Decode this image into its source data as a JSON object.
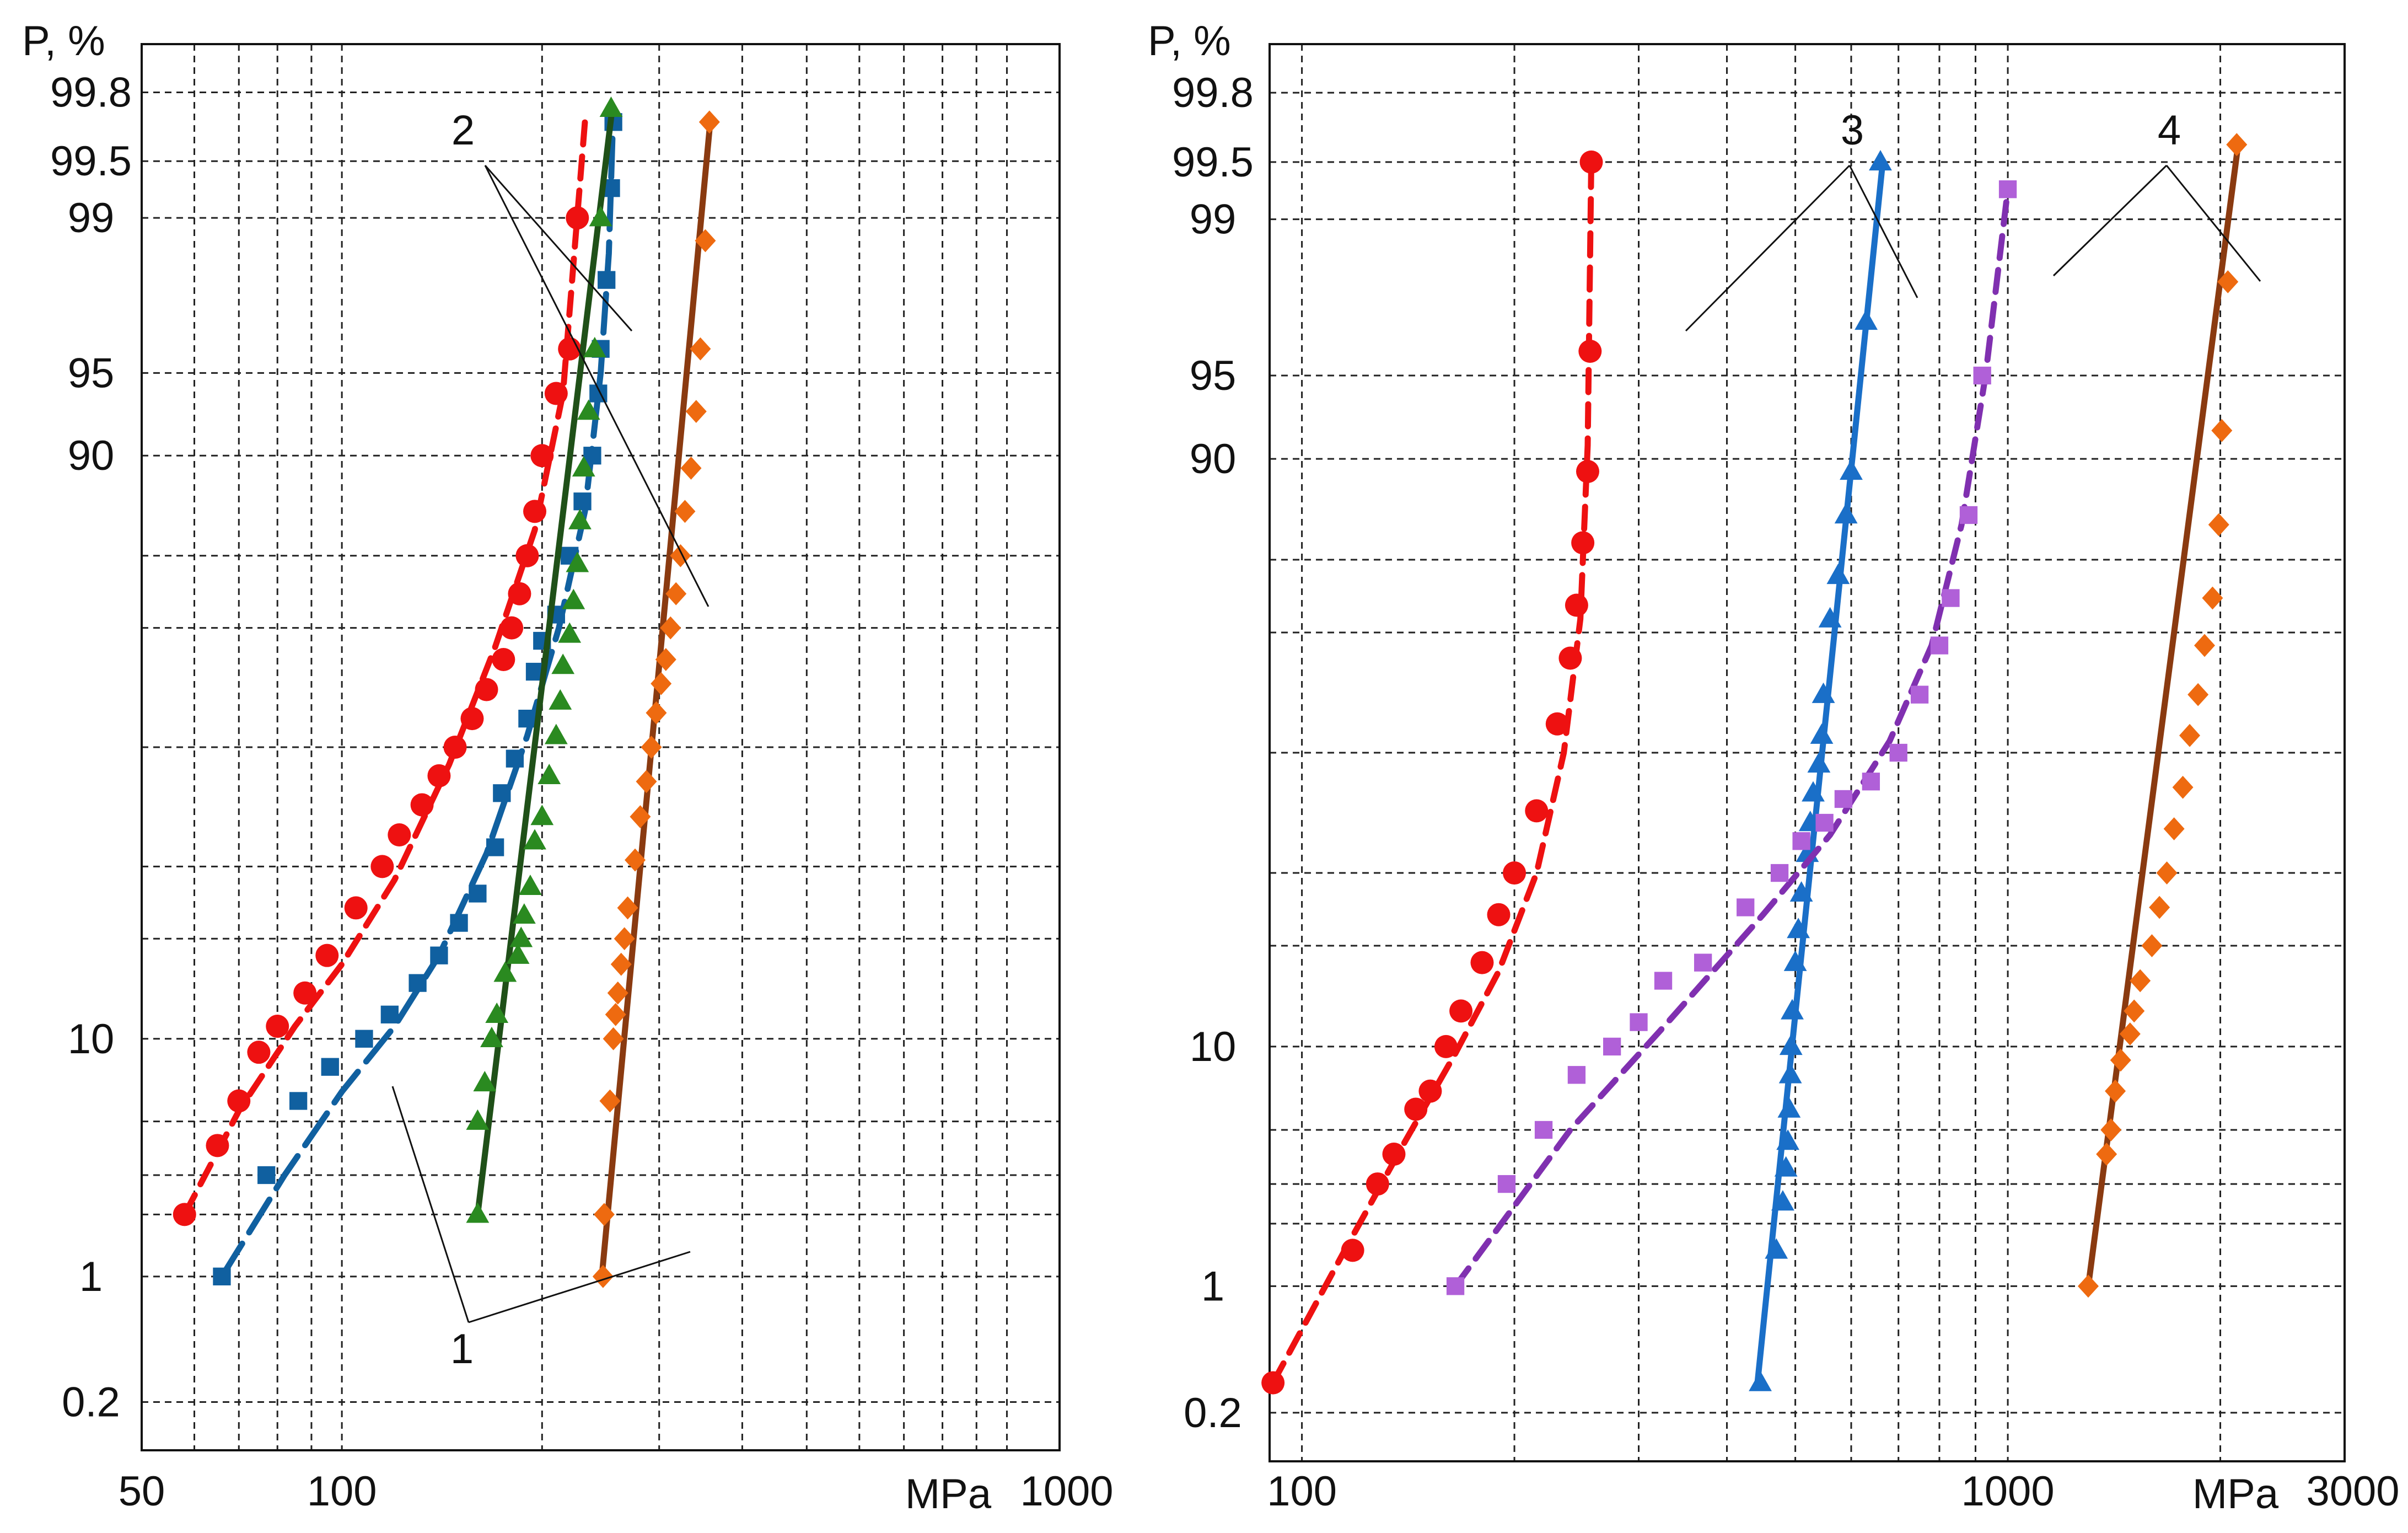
{
  "chart_data": [
    {
      "type": "scatter",
      "panel": "left",
      "xscale": "log",
      "yscale": "probability",
      "xlim": [
        50,
        1200
      ],
      "ylabel": "P, %",
      "xlabel": "MPa",
      "xticks": [
        {
          "value": 50,
          "label": "50"
        },
        {
          "value": 100,
          "label": "100"
        },
        {
          "value": 1000,
          "label": "1000"
        }
      ],
      "yticks": [
        {
          "value": 0.2,
          "label": "0.2"
        },
        {
          "value": 1,
          "label": "1"
        },
        {
          "value": 10,
          "label": "10"
        },
        {
          "value": 90,
          "label": "90"
        },
        {
          "value": 95,
          "label": "95"
        },
        {
          "value": 99,
          "label": "99"
        },
        {
          "value": 99.5,
          "label": "99.5"
        },
        {
          "value": 99.8,
          "label": "99.8"
        }
      ],
      "gridx": [
        60,
        70,
        80,
        90,
        100,
        200,
        300,
        400,
        500,
        600,
        700,
        800,
        900,
        1000
      ],
      "gridy": [
        0.2,
        1,
        2,
        3,
        5,
        10,
        20,
        30,
        50,
        70,
        80,
        90,
        95,
        99,
        99.5,
        99.8
      ],
      "series": [
        {
          "name": "left-red",
          "color": "#ee1111",
          "marker": "circle",
          "line": "dash",
          "sizeKey": "big",
          "x": [
            58,
            65,
            70,
            75,
            80,
            88,
            95,
            105,
            115,
            122,
            132,
            140,
            148,
            157,
            165,
            175,
            180,
            185,
            190,
            195,
            200,
            210,
            220,
            226
          ],
          "y": [
            2,
            4,
            6,
            9,
            11,
            14,
            18,
            24,
            30,
            35,
            40,
            45,
            50,
            55,
            60,
            65,
            70,
            75,
            80,
            85,
            90,
            94,
            96,
            99
          ],
          "fit_x": [
            58,
            70,
            85,
            100,
            120,
            145,
            170,
            195,
            215,
            232
          ],
          "fit_y": [
            2,
            5.5,
            11,
            17,
            28,
            47,
            67,
            83,
            94,
            99.7
          ]
        },
        {
          "name": "left-blue",
          "color": "#1060a0",
          "marker": "square",
          "line": "longdash",
          "sizeKey": "mid",
          "x": [
            66,
            77,
            86,
            96,
            108,
            118,
            130,
            140,
            150,
            160,
            170,
            174,
            182,
            190,
            195,
            200,
            210,
            220,
            230,
            238,
            243,
            245,
            250,
            254,
            256
          ],
          "y": [
            1,
            3,
            6,
            8,
            10,
            12,
            15,
            18,
            22,
            26,
            33,
            42,
            48,
            55,
            63,
            68,
            72,
            80,
            86,
            90,
            94,
            96,
            98,
            99.3,
            99.7
          ],
          "fit_x": [
            66,
            82,
            100,
            120,
            140,
            165,
            190,
            212,
            232,
            245,
            252,
            256
          ],
          "fit_y": [
            1,
            3,
            6.5,
            11,
            18,
            32,
            52,
            70,
            85,
            95,
            98.5,
            99.75
          ]
        },
        {
          "name": "left-green",
          "color": "#2a8a20",
          "marker": "triangle",
          "line": "solid",
          "lineColor": "#1f5018",
          "sizeKey": "mid",
          "x": [
            160,
            160,
            164,
            168,
            171,
            176,
            184,
            186,
            188,
            192,
            195,
            200,
            205,
            210,
            213,
            215,
            220,
            223,
            226,
            228,
            231,
            235,
            240,
            245,
            254
          ],
          "y": [
            2,
            5,
            7,
            10,
            12,
            16,
            18,
            20,
            23,
            27,
            34,
            38,
            45,
            52,
            58,
            64,
            69,
            74,
            79,
            84,
            89,
            93,
            96,
            99,
            99.75
          ],
          "fit_x": [
            160,
            255
          ],
          "fit_y": [
            2,
            99.75
          ]
        },
        {
          "name": "left-orange",
          "color": "#ee6a10",
          "marker": "diamond",
          "line": "solid",
          "lineColor": "#8a3a10",
          "sizeKey": "mid",
          "x": [
            247,
            248,
            253,
            256,
            258,
            260,
            263,
            266,
            269,
            276,
            281,
            287,
            292,
            297,
            302,
            307,
            312,
            318,
            323,
            328,
            335,
            341,
            346,
            352,
            357
          ],
          "y": [
            1,
            2,
            6,
            10,
            12,
            14,
            17,
            20,
            24,
            31,
            38,
            44,
            50,
            56,
            61,
            65,
            70,
            75,
            80,
            85,
            89,
            93,
            96,
            98.7,
            99.7
          ],
          "fit_x": [
            246,
            358
          ],
          "fit_y": [
            1,
            99.7
          ]
        }
      ],
      "annotations": [
        {
          "label": "1",
          "points_to": [
            "left-blue",
            "left-orange"
          ]
        },
        {
          "label": "2",
          "points_to": [
            "left-red",
            "left-green"
          ]
        }
      ]
    },
    {
      "type": "scatter",
      "panel": "right",
      "xscale": "log",
      "yscale": "probability",
      "xlim": [
        90,
        3000
      ],
      "ylabel": "P, %",
      "xlabel": "MPa",
      "xticks": [
        {
          "value": 100,
          "label": "100"
        },
        {
          "value": 1000,
          "label": "1000"
        },
        {
          "value": 3000,
          "label": "3000"
        }
      ],
      "yticks": [
        {
          "value": 0.2,
          "label": "0.2"
        },
        {
          "value": 1,
          "label": "1"
        },
        {
          "value": 10,
          "label": "10"
        },
        {
          "value": 90,
          "label": "90"
        },
        {
          "value": 95,
          "label": "95"
        },
        {
          "value": 99,
          "label": "99"
        },
        {
          "value": 99.5,
          "label": "99.5"
        },
        {
          "value": 99.8,
          "label": "99.8"
        }
      ],
      "gridx": [
        100,
        200,
        300,
        400,
        500,
        600,
        700,
        800,
        900,
        1000,
        2000,
        3000
      ],
      "gridy": [
        0.2,
        1,
        2,
        3,
        5,
        10,
        20,
        30,
        50,
        70,
        80,
        90,
        95,
        99,
        99.5,
        99.8
      ],
      "series": [
        {
          "name": "right-red",
          "color": "#ee1111",
          "marker": "circle",
          "line": "dash",
          "sizeKey": "big",
          "x": [
            91,
            118,
            128,
            135,
            145,
            152,
            160,
            168,
            180,
            190,
            200,
            215,
            230,
            240,
            245,
            250,
            254,
            256,
            257
          ],
          "y": [
            0.3,
            1.5,
            3,
            4,
            6,
            7,
            10,
            13,
            18,
            24,
            30,
            40,
            55,
            66,
            74,
            82,
            89,
            96,
            99.5
          ],
          "fit_x": [
            91,
            115,
            140,
            165,
            190,
            215,
            235,
            248,
            254,
            257
          ],
          "fit_y": [
            0.3,
            1.5,
            4.5,
            9.5,
            17,
            30,
            50,
            72,
            91,
            99.5
          ]
        },
        {
          "name": "right-blue",
          "color": "#1a6fc8",
          "marker": "triangle",
          "line": "solid",
          "sizeKey": "mid",
          "x": [
            446,
            470,
            480,
            485,
            488,
            490,
            492,
            493,
            495,
            500,
            505,
            510,
            520,
            525,
            530,
            540,
            545,
            548,
            560,
            575,
            590,
            600,
            630,
            660
          ],
          "y": [
            0.3,
            1.5,
            2.5,
            3.5,
            4.5,
            6,
            8,
            10,
            13,
            18,
            22,
            27,
            33,
            38,
            43,
            48,
            53,
            60,
            72,
            78,
            85,
            89,
            97,
            99.5
          ],
          "fit_x": [
            442,
            665
          ],
          "fit_y": [
            0.3,
            99.5
          ]
        },
        {
          "name": "right-purple",
          "color": "#b060d8",
          "marker": "square",
          "line": "dash",
          "lineColor": "#8030b0",
          "sizeKey": "mid",
          "x": [
            165,
            195,
            220,
            245,
            275,
            300,
            325,
            370,
            425,
            475,
            510,
            550,
            585,
            640,
            700,
            750,
            800,
            830,
            880,
            920,
            1000
          ],
          "y": [
            1,
            3,
            5,
            8,
            10,
            12,
            16,
            18,
            25,
            30,
            35,
            38,
            42,
            45,
            50,
            60,
            68,
            75,
            85,
            95,
            99.3
          ],
          "fit_x": [
            165,
            240,
            330,
            450,
            560,
            680,
            780,
            860,
            930,
            1000
          ],
          "fit_y": [
            1,
            5,
            12,
            24,
            36,
            52,
            68,
            84,
            95,
            99.3
          ]
        },
        {
          "name": "right-orange",
          "color": "#ee6a10",
          "marker": "diamond",
          "line": "solid",
          "lineColor": "#8a3a10",
          "sizeKey": "mid",
          "x": [
            1300,
            1380,
            1400,
            1420,
            1445,
            1490,
            1510,
            1540,
            1600,
            1640,
            1680,
            1720,
            1770,
            1810,
            1860,
            1900,
            1950,
            1990,
            2010,
            2050,
            2110
          ],
          "y": [
            1,
            4,
            5,
            7,
            9,
            11,
            13,
            16,
            20,
            25,
            30,
            37,
            44,
            53,
            60,
            68,
            75,
            84,
            92,
            98,
            99.6
          ],
          "fit_x": [
            1300,
            2120
          ],
          "fit_y": [
            1,
            99.6
          ]
        }
      ],
      "annotations": [
        {
          "label": "3",
          "points_to": [
            "right-red",
            "right-blue"
          ]
        },
        {
          "label": "4",
          "points_to": [
            "right-purple",
            "right-orange"
          ]
        }
      ]
    }
  ]
}
